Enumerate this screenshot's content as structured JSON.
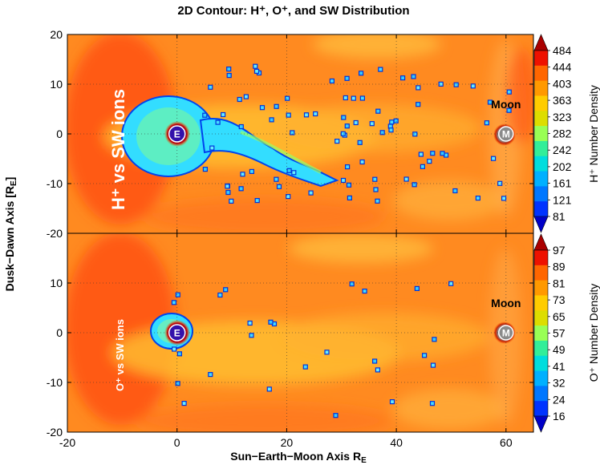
{
  "chart_data": {
    "type": "heatmap",
    "title": "2D Contour: H⁺, O⁺, and SW Distribution",
    "xlabel": "Sun−Earth−Moon Axis R",
    "xlabel_sub": "E",
    "ylabel": "Dusk−Dawn Axis [R",
    "ylabel_sub": "E",
    "ylabel_end": "]",
    "xlim": [
      -20,
      65
    ],
    "x_ticks": [
      -20,
      0,
      20,
      40,
      60
    ],
    "x_tick_labels": [
      "-20",
      "0",
      "20",
      "40",
      "60"
    ],
    "grid": "dotted",
    "panels": [
      {
        "name": "top",
        "ylim": [
          -20,
          20
        ],
        "y_ticks": [
          -20,
          -10,
          0,
          10,
          20
        ],
        "y_tick_labels": [
          "-20",
          "-10",
          "0",
          "10",
          "20"
        ],
        "in_plot_label": "H⁺ vs SW ions",
        "colorbar_label": "H⁺ Number Density",
        "colorbar_ticks": [
          "484",
          "444",
          "403",
          "363",
          "323",
          "282",
          "242",
          "202",
          "161",
          "121",
          "81"
        ],
        "moon_label": "Moon",
        "earth": {
          "x": 0,
          "y": 0,
          "label": "E"
        },
        "moon": {
          "x": 60,
          "y": 0,
          "label": "M"
        },
        "moon_label_pos": {
          "x": 60,
          "y": 6
        }
      },
      {
        "name": "bottom",
        "ylim": [
          -20,
          20
        ],
        "y_ticks": [
          -20,
          -10,
          0,
          10,
          20
        ],
        "y_tick_labels": [
          "-20",
          "-10",
          "0",
          "10",
          "20"
        ],
        "in_plot_label": "O⁺ vs SW ions",
        "colorbar_label": "O⁺ Number Density",
        "colorbar_ticks": [
          "97",
          "89",
          "81",
          "73",
          "65",
          "57",
          "49",
          "41",
          "32",
          "24",
          "16"
        ],
        "moon_label": "Moon",
        "earth": {
          "x": 0,
          "y": 0,
          "label": "E"
        },
        "moon": {
          "x": 60,
          "y": 0,
          "label": "M"
        },
        "moon_label_pos": {
          "x": 60,
          "y": 6
        }
      }
    ],
    "colorscale": [
      "#0000c8",
      "#0033ff",
      "#0077ff",
      "#00b0ff",
      "#00dddd",
      "#33ee99",
      "#99ff55",
      "#dddd00",
      "#ffcc00",
      "#ff9900",
      "#ff6600",
      "#ee1100",
      "#aa0000"
    ]
  }
}
